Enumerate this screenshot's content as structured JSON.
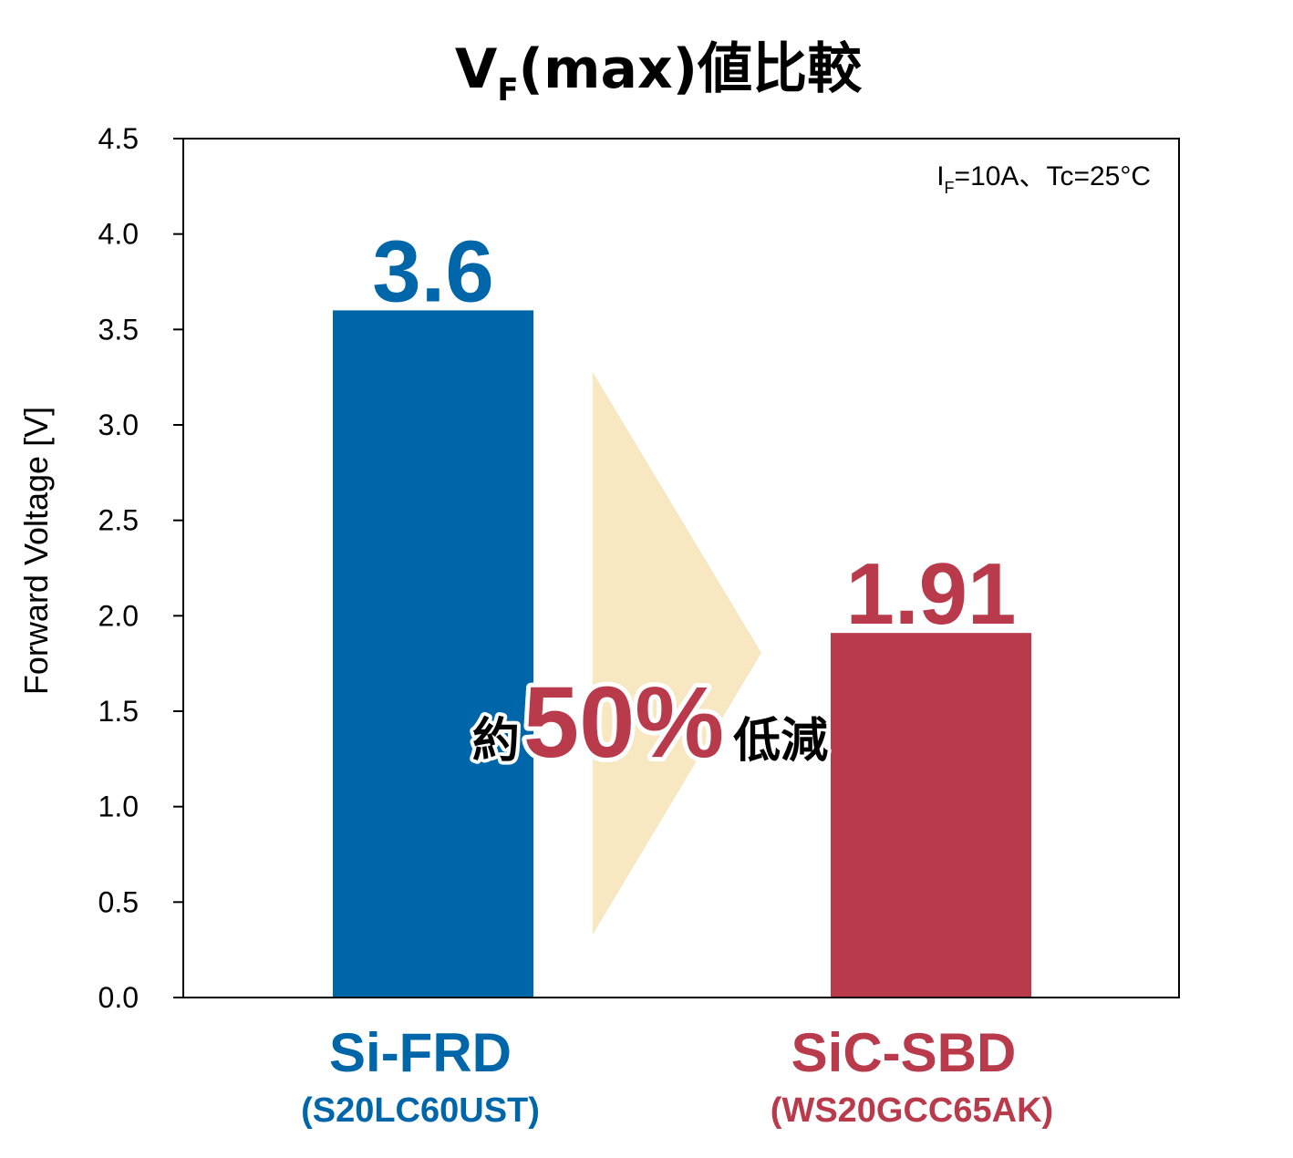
{
  "chart_data": {
    "type": "bar",
    "title": {
      "main_prefix": "V",
      "main_sub": "F",
      "main_suffix": "(max)値比較"
    },
    "ylabel": "Forward Voltage  [V]",
    "xlabel": "",
    "ylim": [
      0,
      4.5
    ],
    "y_ticks": [
      "0.0",
      "0.5",
      "1.0",
      "1.5",
      "2.0",
      "2.5",
      "3.0",
      "3.5",
      "4.0",
      "4.5"
    ],
    "grid": false,
    "legend": "none",
    "categories": [
      {
        "name": "Si-FRD",
        "part": "(S20LC60UST)",
        "value": 3.6,
        "value_label": "3.6",
        "color": "#0066AA"
      },
      {
        "name": "SiC-SBD",
        "part": "(WS20GCC65AK)",
        "value": 1.91,
        "value_label": "1.91",
        "color": "#B83A4B"
      }
    ],
    "condition": {
      "i_main": "I",
      "i_sub": "F",
      "rest": "=10A、Tc=25°C"
    },
    "annotation": {
      "prefix": "約",
      "percent": "50%",
      "suffix": "低減",
      "arrow_color": "#F7E8C1",
      "percent_color": "#B83A4B"
    }
  }
}
